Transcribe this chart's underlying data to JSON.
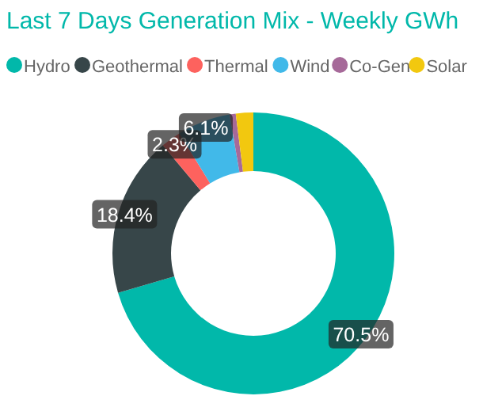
{
  "chart_data": {
    "type": "donut",
    "title": "Last 7 Days Generation Mix - Weekly GWh",
    "categories": [
      "Hydro",
      "Geothermal",
      "Thermal",
      "Wind",
      "Co-Gen",
      "Solar"
    ],
    "values": [
      70.5,
      18.4,
      2.3,
      6.1,
      0.7,
      2.0
    ],
    "colors": [
      "#01b8aa",
      "#374649",
      "#fd625e",
      "#41b9e9",
      "#a66999",
      "#f2c80f"
    ],
    "value_labels": [
      "70.5%",
      "18.4%",
      "2.3%",
      "6.1%",
      null,
      null
    ],
    "legend": "top left"
  }
}
